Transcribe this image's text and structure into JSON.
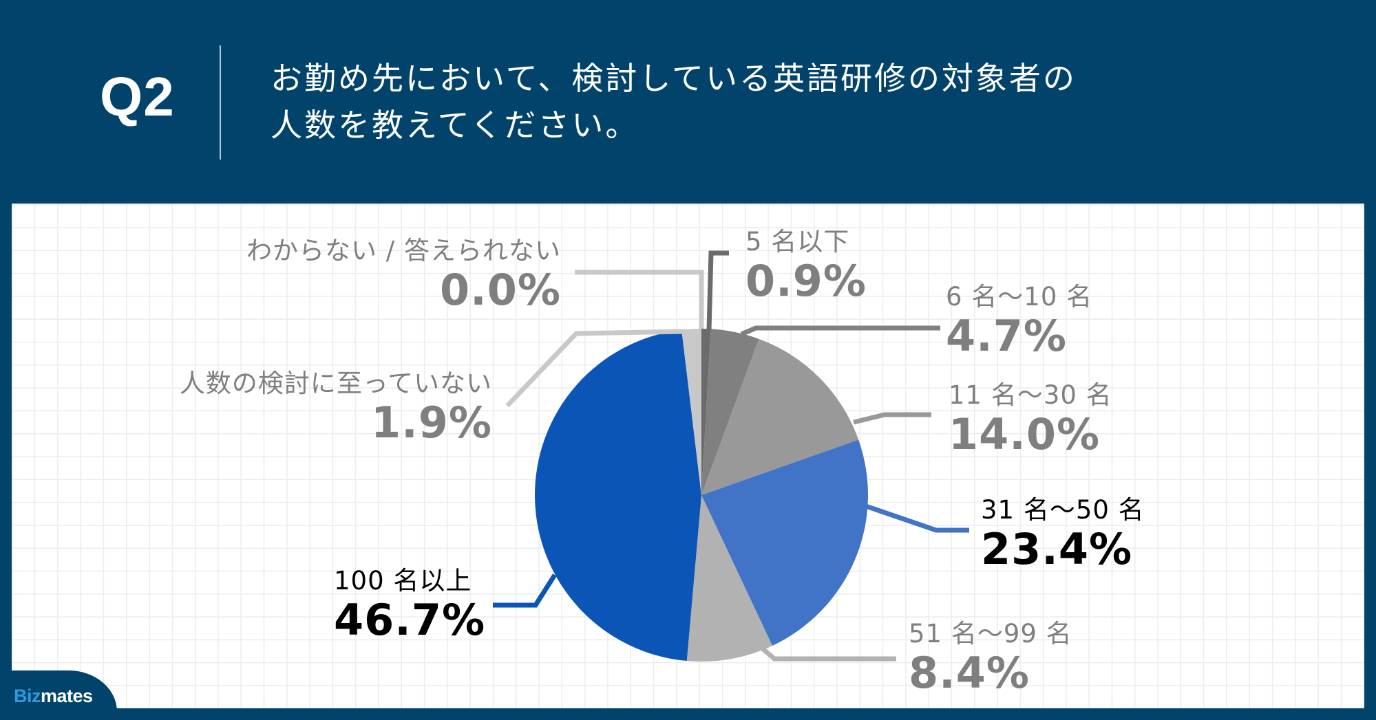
{
  "header": {
    "question_number": "Q2",
    "question_line1": "お勤め先において、検討している英語研修の対象者の",
    "question_line2": "人数を教えてください。"
  },
  "logo": {
    "part1": "Biz",
    "part2": "mates"
  },
  "colors": {
    "background": "#02436b",
    "panel": "#ffffff",
    "grid": "#ececec",
    "label_gray": "#7f7f7f",
    "label_dark": "#000000"
  },
  "chart_data": {
    "type": "pie",
    "title": "お勤め先において、検討している英語研修の対象者の人数を教えてください。",
    "start_angle": 0,
    "direction": "clockwise",
    "center": [
      1019,
      720
    ],
    "radius": 242,
    "slices": [
      {
        "label": "5 名以下",
        "value": 0.9,
        "display": "0.9%",
        "color": "#6b6b6b",
        "text_color": "#7f7f7f"
      },
      {
        "label": "6 名〜10 名",
        "value": 4.7,
        "display": "4.7%",
        "color": "#808080",
        "text_color": "#7f7f7f"
      },
      {
        "label": "11 名〜30 名",
        "value": 14.0,
        "display": "14.0%",
        "color": "#999999",
        "text_color": "#7f7f7f"
      },
      {
        "label": "31 名〜50 名",
        "value": 23.4,
        "display": "23.4%",
        "color": "#4174c6",
        "text_color": "#000000"
      },
      {
        "label": "51 名〜99 名",
        "value": 8.4,
        "display": "8.4%",
        "color": "#b2b2b2",
        "text_color": "#7f7f7f"
      },
      {
        "label": "100 名以上",
        "value": 46.7,
        "display": "46.7%",
        "color": "#0a55b6",
        "text_color": "#000000"
      },
      {
        "label": "人数の検討に至っていない",
        "value": 1.9,
        "display": "1.9%",
        "color": "#c8c8c8",
        "text_color": "#7f7f7f"
      },
      {
        "label": "わからない / 答えられない",
        "value": 0.0,
        "display": "0.0%",
        "color": "#cfcfcf",
        "text_color": "#7f7f7f"
      }
    ],
    "legend": "none (data labels with leader lines)"
  }
}
